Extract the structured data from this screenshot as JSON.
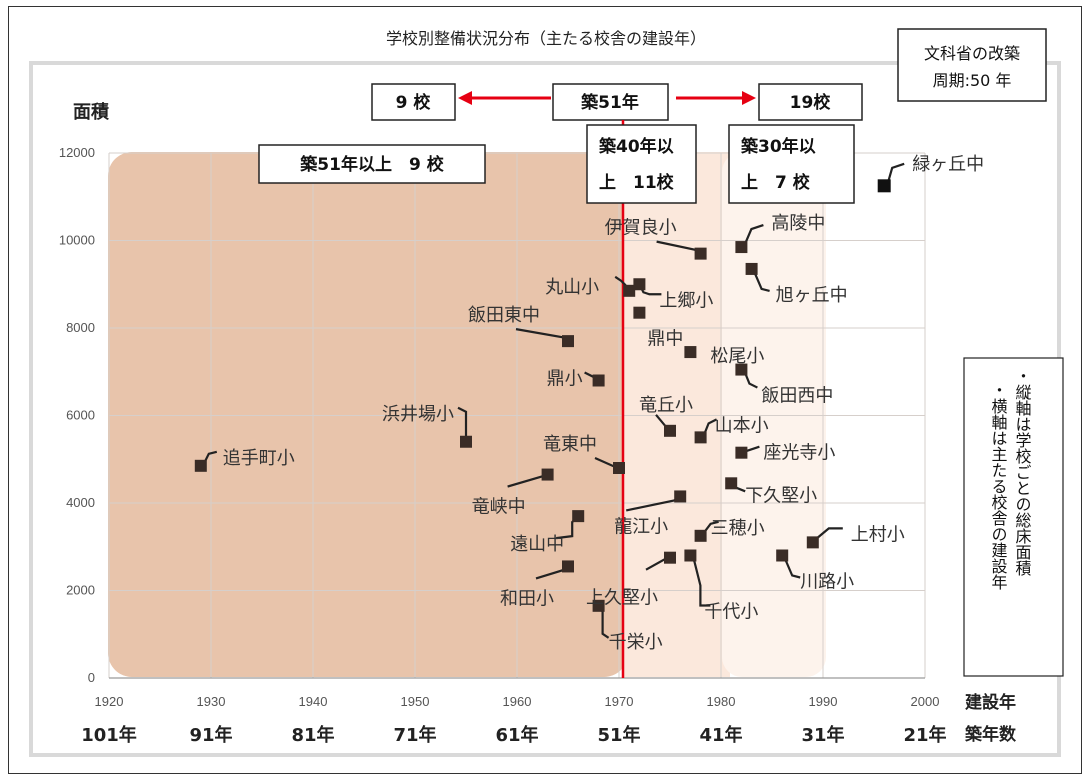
{
  "title": "学校別整備状況分布（主たる校舎の建設年）",
  "note_box": {
    "line1": "文科省の改築",
    "line2": "周期:50 年"
  },
  "axis_labels": {
    "y": "面積",
    "x": "建設年",
    "age": "築年数"
  },
  "side_note": {
    "line1": "・縦軸は学校ごとの総床面積",
    "line2": "・横軸は主たる校舎の建設年"
  },
  "top_boxes": {
    "left_count": "9 校",
    "center": "築51年",
    "right_count": "19校"
  },
  "region_boxes": {
    "r51": "築51年以上　9 校",
    "r40_line1": "築40年以",
    "r40_line2": "上　11校",
    "r30_line1": "築30年以",
    "r30_line2": "上　7 校"
  },
  "colors": {
    "red_line": "#e60012",
    "marker": "#3a2c26",
    "region1": "#e8c4ab",
    "region2": "#fbe8dc",
    "region3": "#fdf3ec"
  },
  "chart_data": {
    "type": "scatter",
    "xlim": [
      1920,
      2000
    ],
    "ylim": [
      0,
      12000
    ],
    "x_ticks": [
      1920,
      1930,
      1940,
      1950,
      1960,
      1970,
      1980,
      1990,
      2000
    ],
    "y_ticks": [
      0,
      2000,
      4000,
      6000,
      8000,
      10000,
      12000
    ],
    "age_labels": [
      "101年",
      "91年",
      "81年",
      "71年",
      "61年",
      "51年",
      "41年",
      "31年",
      "21年"
    ],
    "reference_line_x": 1970,
    "points": [
      {
        "name": "追手町小",
        "x": 1929,
        "y": 4850
      },
      {
        "name": "浜井場小",
        "x": 1955,
        "y": 5400
      },
      {
        "name": "飯田東中",
        "x": 1965,
        "y": 7700
      },
      {
        "name": "鼎小",
        "x": 1968,
        "y": 6800
      },
      {
        "name": "竜峡中",
        "x": 1963,
        "y": 4650
      },
      {
        "name": "遠山中",
        "x": 1966,
        "y": 3700
      },
      {
        "name": "和田小",
        "x": 1965,
        "y": 2550
      },
      {
        "name": "千栄小",
        "x": 1968,
        "y": 1650
      },
      {
        "name": "竜東中",
        "x": 1970,
        "y": 4800
      },
      {
        "name": "丸山小",
        "x": 1971,
        "y": 8850
      },
      {
        "name": "上郷小",
        "x": 1972,
        "y": 9000
      },
      {
        "name": "鼎中",
        "x": 1972,
        "y": 8350
      },
      {
        "name": "伊賀良小",
        "x": 1978,
        "y": 9700
      },
      {
        "name": "竜丘小",
        "x": 1975,
        "y": 5650
      },
      {
        "name": "松尾小",
        "x": 1977,
        "y": 7450
      },
      {
        "name": "山本小",
        "x": 1978,
        "y": 5500
      },
      {
        "name": "龍江小",
        "x": 1976,
        "y": 4150
      },
      {
        "name": "三穂小",
        "x": 1978,
        "y": 3250
      },
      {
        "name": "上久堅小",
        "x": 1975,
        "y": 2750
      },
      {
        "name": "千代小",
        "x": 1977,
        "y": 2800
      },
      {
        "name": "高陵中",
        "x": 1982,
        "y": 9850
      },
      {
        "name": "旭ヶ丘中",
        "x": 1983,
        "y": 9350
      },
      {
        "name": "飯田西中",
        "x": 1982,
        "y": 7050
      },
      {
        "name": "座光寺小",
        "x": 1982,
        "y": 5150
      },
      {
        "name": "下久堅小",
        "x": 1981,
        "y": 4450
      },
      {
        "name": "川路小",
        "x": 1986,
        "y": 2800
      },
      {
        "name": "上村小",
        "x": 1989,
        "y": 3100
      },
      {
        "name": "緑ヶ丘中",
        "x": 1996,
        "y": 11250
      }
    ]
  }
}
